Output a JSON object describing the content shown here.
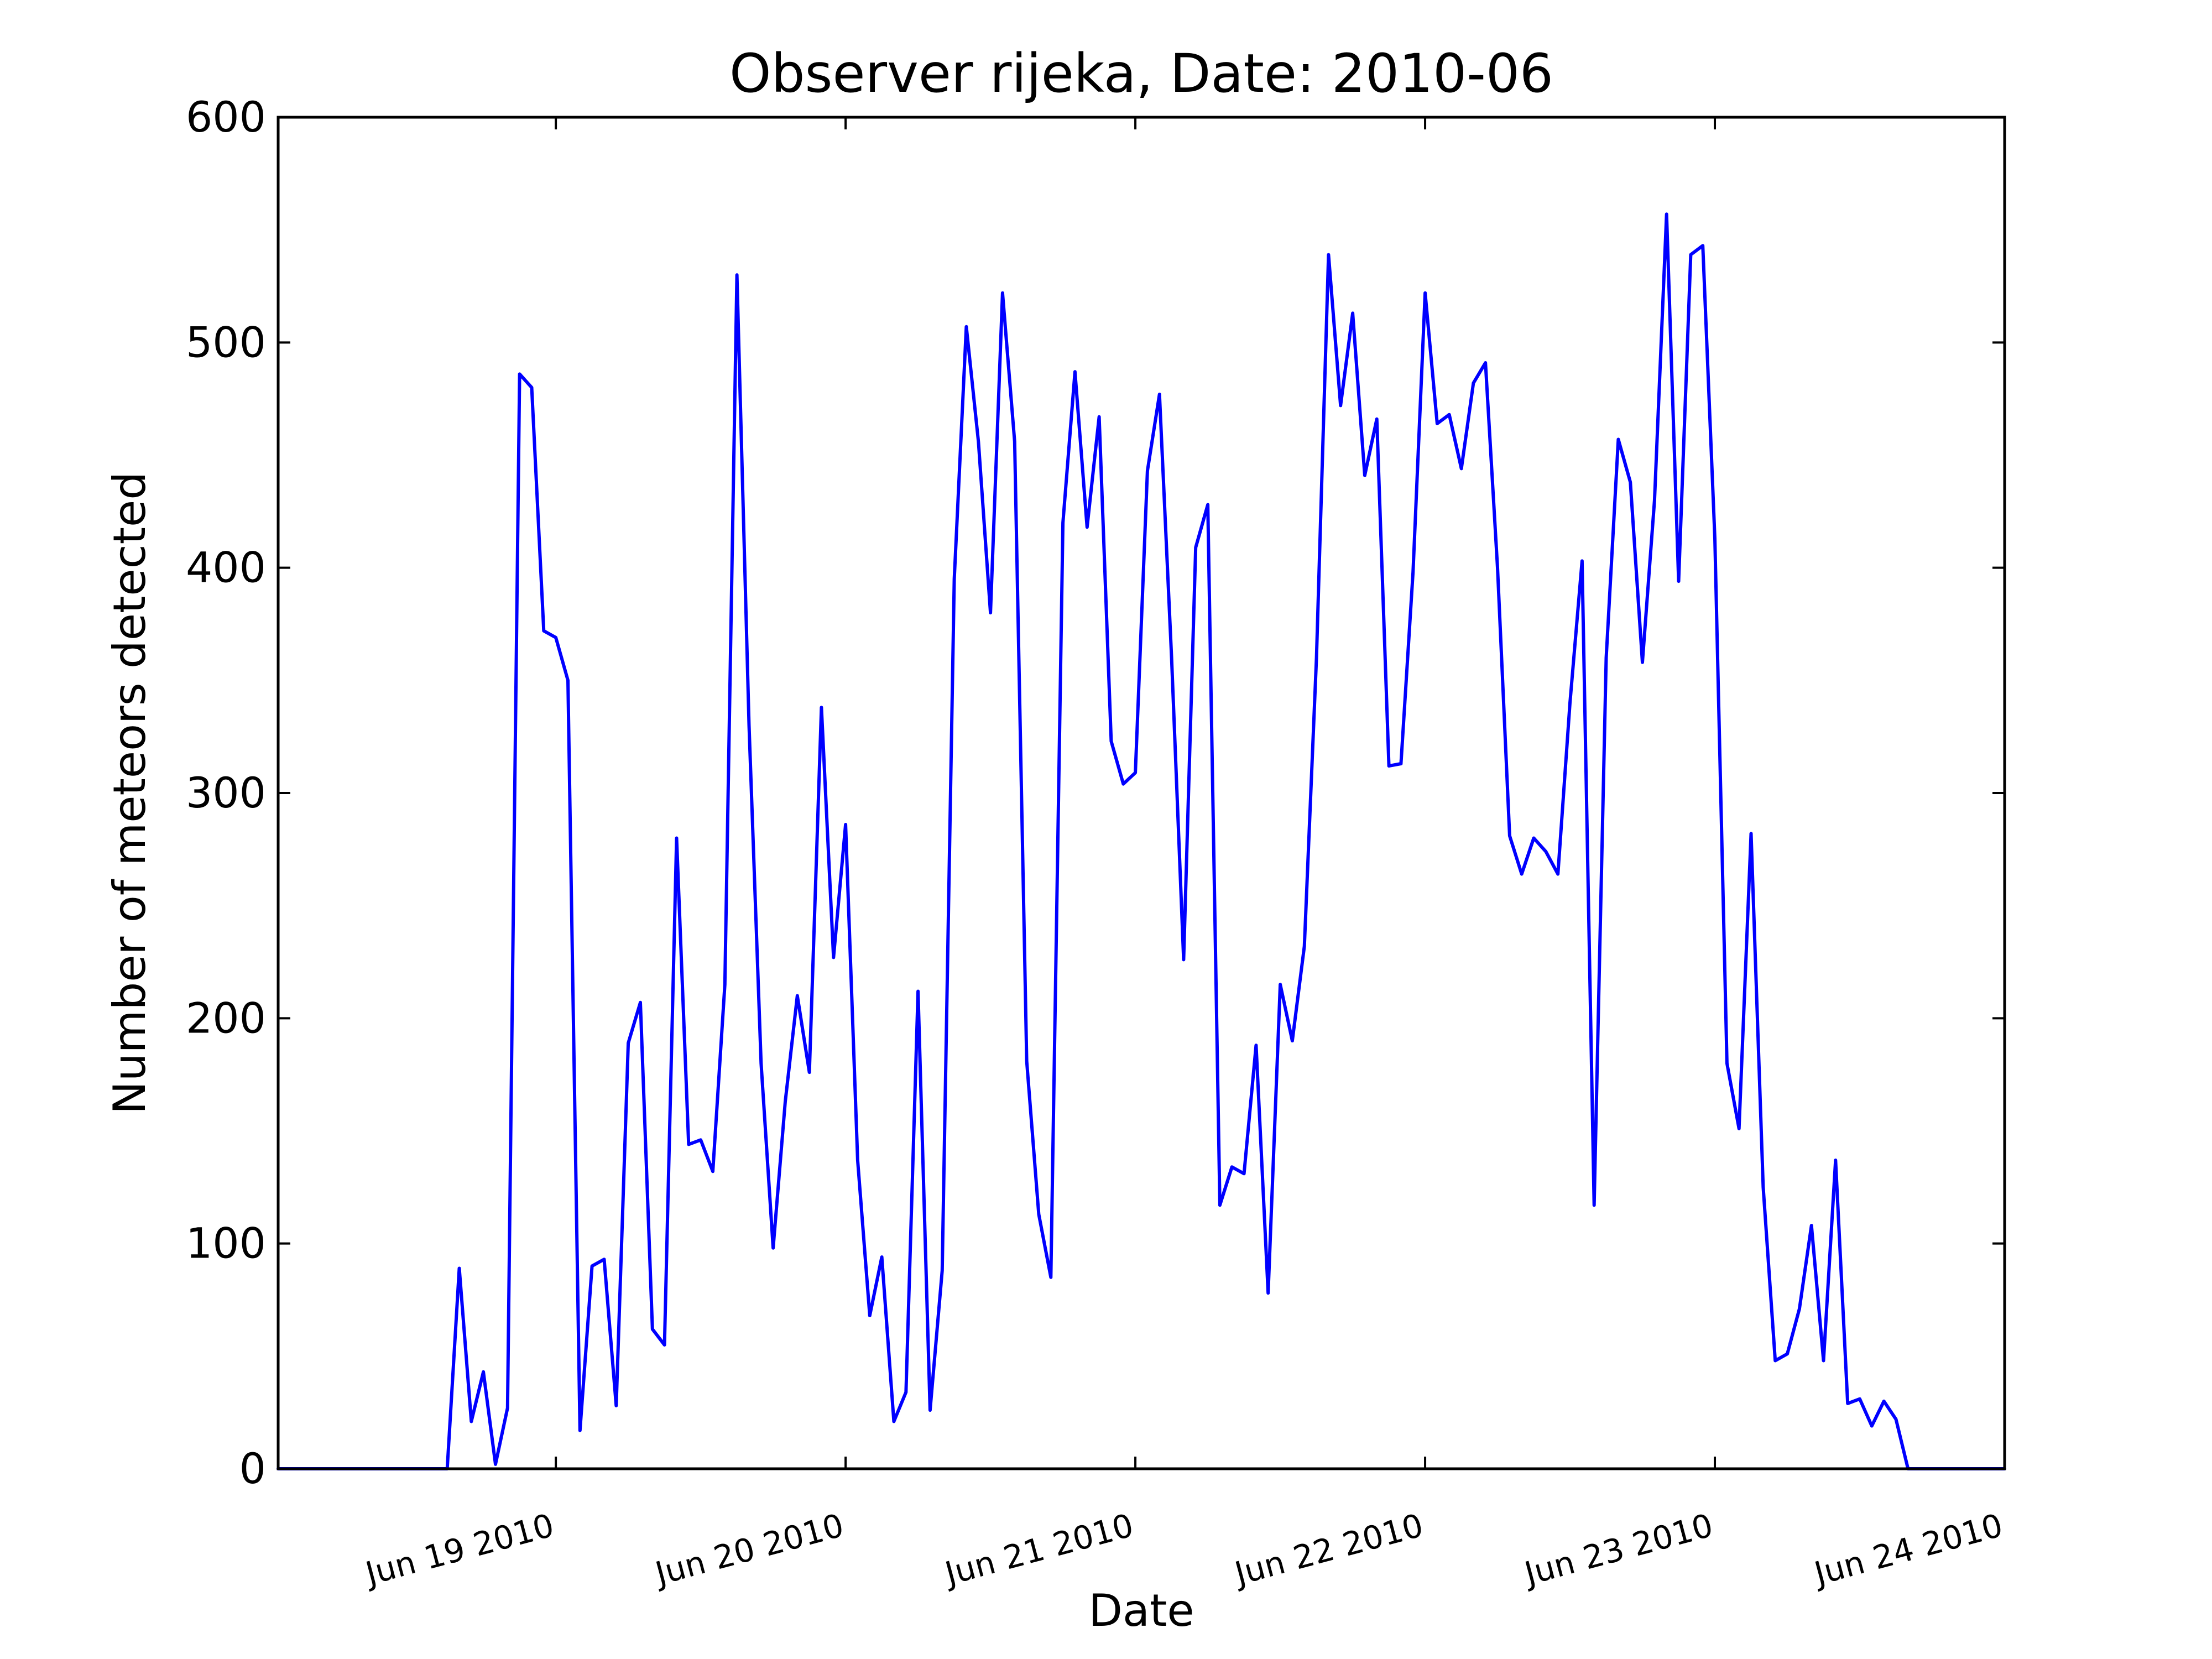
{
  "chart_data": {
    "type": "line",
    "title": "Observer rijeka, Date: 2010-06",
    "xlabel": "Date",
    "ylabel": "Number of meteors detected",
    "xlim": [
      "2010-06-18 01:00",
      "2010-06-24 00:00"
    ],
    "ylim": [
      0,
      600
    ],
    "x_ticks": [
      "2010-06-19 00:00",
      "2010-06-20 00:00",
      "2010-06-21 00:00",
      "2010-06-22 00:00",
      "2010-06-23 00:00",
      "2010-06-24 00:00"
    ],
    "x_tick_labels": [
      "Jun 19 2010",
      "Jun 20 2010",
      "Jun 21 2010",
      "Jun 22 2010",
      "Jun 23 2010",
      "Jun 24 2010"
    ],
    "y_ticks": [
      0,
      100,
      200,
      300,
      400,
      500,
      600
    ],
    "y_tick_labels": [
      "0",
      "100",
      "200",
      "300",
      "400",
      "500",
      "600"
    ],
    "grid": false,
    "line_color": "#0000ff",
    "series": [
      {
        "x": [
          "2010-06-18 00:00",
          "2010-06-18 01:00",
          "2010-06-18 02:00",
          "2010-06-18 03:00",
          "2010-06-18 04:00",
          "2010-06-18 05:00",
          "2010-06-18 06:00",
          "2010-06-18 07:00",
          "2010-06-18 08:00",
          "2010-06-18 09:00",
          "2010-06-18 10:00",
          "2010-06-18 11:00",
          "2010-06-18 12:00",
          "2010-06-18 13:00",
          "2010-06-18 14:00",
          "2010-06-18 15:00",
          "2010-06-18 16:00",
          "2010-06-18 17:00",
          "2010-06-18 18:00",
          "2010-06-18 19:00",
          "2010-06-18 20:00",
          "2010-06-18 21:00",
          "2010-06-18 22:00",
          "2010-06-18 23:00",
          "2010-06-19 00:00",
          "2010-06-19 01:00",
          "2010-06-19 02:00",
          "2010-06-19 03:00",
          "2010-06-19 04:00",
          "2010-06-19 05:00",
          "2010-06-19 06:00",
          "2010-06-19 07:00",
          "2010-06-19 08:00",
          "2010-06-19 09:00",
          "2010-06-19 10:00",
          "2010-06-19 11:00",
          "2010-06-19 12:00",
          "2010-06-19 13:00",
          "2010-06-19 14:00",
          "2010-06-19 15:00",
          "2010-06-19 16:00",
          "2010-06-19 17:00",
          "2010-06-19 18:00",
          "2010-06-19 19:00",
          "2010-06-19 20:00",
          "2010-06-19 21:00",
          "2010-06-19 22:00",
          "2010-06-19 23:00",
          "2010-06-20 00:00",
          "2010-06-20 01:00",
          "2010-06-20 02:00",
          "2010-06-20 03:00",
          "2010-06-20 04:00",
          "2010-06-20 05:00",
          "2010-06-20 06:00",
          "2010-06-20 07:00",
          "2010-06-20 08:00",
          "2010-06-20 09:00",
          "2010-06-20 10:00",
          "2010-06-20 11:00",
          "2010-06-20 12:00",
          "2010-06-20 13:00",
          "2010-06-20 14:00",
          "2010-06-20 15:00",
          "2010-06-20 16:00",
          "2010-06-20 17:00",
          "2010-06-20 18:00",
          "2010-06-20 19:00",
          "2010-06-20 20:00",
          "2010-06-20 21:00",
          "2010-06-20 22:00",
          "2010-06-20 23:00",
          "2010-06-21 00:00",
          "2010-06-21 01:00",
          "2010-06-21 02:00",
          "2010-06-21 03:00",
          "2010-06-21 04:00",
          "2010-06-21 05:00",
          "2010-06-21 06:00",
          "2010-06-21 07:00",
          "2010-06-21 08:00",
          "2010-06-21 09:00",
          "2010-06-21 10:00",
          "2010-06-21 11:00",
          "2010-06-21 12:00",
          "2010-06-21 13:00",
          "2010-06-21 14:00",
          "2010-06-21 15:00",
          "2010-06-21 16:00",
          "2010-06-21 17:00",
          "2010-06-21 18:00",
          "2010-06-21 19:00",
          "2010-06-21 20:00",
          "2010-06-21 21:00",
          "2010-06-21 22:00",
          "2010-06-21 23:00",
          "2010-06-22 00:00",
          "2010-06-22 01:00",
          "2010-06-22 02:00",
          "2010-06-22 03:00",
          "2010-06-22 04:00",
          "2010-06-22 05:00",
          "2010-06-22 06:00",
          "2010-06-22 07:00",
          "2010-06-22 08:00",
          "2010-06-22 09:00",
          "2010-06-22 10:00",
          "2010-06-22 11:00",
          "2010-06-22 12:00",
          "2010-06-22 13:00",
          "2010-06-22 14:00",
          "2010-06-22 15:00",
          "2010-06-22 16:00",
          "2010-06-22 17:00",
          "2010-06-22 18:00",
          "2010-06-22 19:00",
          "2010-06-22 20:00",
          "2010-06-22 21:00",
          "2010-06-22 22:00",
          "2010-06-22 23:00",
          "2010-06-23 00:00",
          "2010-06-23 01:00",
          "2010-06-23 02:00",
          "2010-06-23 03:00",
          "2010-06-23 04:00",
          "2010-06-23 05:00",
          "2010-06-23 06:00",
          "2010-06-23 07:00",
          "2010-06-23 08:00",
          "2010-06-23 09:00",
          "2010-06-23 10:00",
          "2010-06-23 11:00",
          "2010-06-23 12:00",
          "2010-06-23 13:00",
          "2010-06-23 14:00",
          "2010-06-23 15:00",
          "2010-06-23 16:00",
          "2010-06-23 17:00",
          "2010-06-23 18:00",
          "2010-06-23 19:00",
          "2010-06-23 20:00",
          "2010-06-23 21:00",
          "2010-06-23 22:00",
          "2010-06-23 23:00",
          "2010-06-24 00:00"
        ],
        "values": [
          0,
          0,
          0,
          0,
          0,
          0,
          0,
          0,
          0,
          0,
          0,
          0,
          0,
          0,
          0,
          0,
          89,
          21,
          43,
          2,
          27,
          486,
          480,
          372,
          369,
          350,
          17,
          90,
          93,
          28,
          189,
          207,
          62,
          55,
          280,
          144,
          146,
          132,
          215,
          530,
          330,
          180,
          98,
          163,
          210,
          176,
          338,
          227,
          286,
          137,
          68,
          94,
          21,
          34,
          212,
          26,
          88,
          395,
          507,
          456,
          380,
          522,
          456,
          181,
          113,
          85,
          420,
          487,
          418,
          467,
          323,
          304,
          309,
          443,
          477,
          360,
          226,
          409,
          428,
          117,
          134,
          131,
          188,
          78,
          215,
          190,
          232,
          360,
          539,
          472,
          513,
          441,
          466,
          312,
          313,
          398,
          522,
          464,
          468,
          444,
          482,
          491,
          400,
          281,
          264,
          280,
          274,
          264,
          340,
          403,
          117,
          360,
          457,
          438,
          358,
          430,
          557,
          394,
          539,
          543,
          413,
          180,
          151,
          282,
          125,
          48,
          51,
          71,
          108,
          48,
          137,
          29,
          31,
          19,
          30,
          22,
          0,
          0,
          0,
          0,
          0,
          0,
          0,
          0,
          0
        ]
      }
    ]
  }
}
